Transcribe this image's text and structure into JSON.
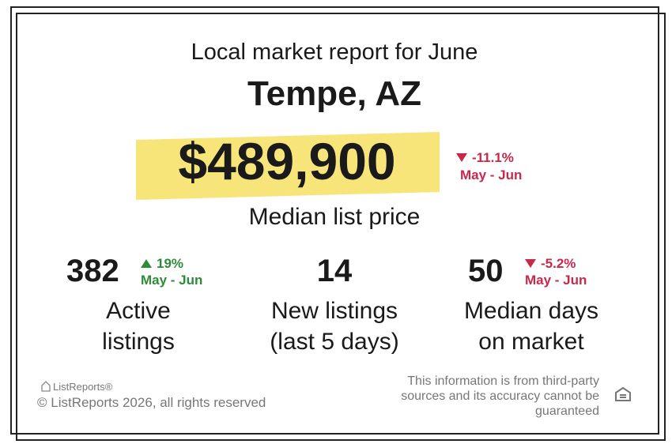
{
  "header": {
    "title": "Local market report for June",
    "location": "Tempe, AZ"
  },
  "headline": {
    "value": "$489,900",
    "change": "-11.1%",
    "period": "May - Jun",
    "label": "Median list price"
  },
  "stats": [
    {
      "value": "382",
      "change": "19%",
      "period": "May - Jun",
      "label": [
        "Active",
        "listings"
      ]
    },
    {
      "value": "14",
      "label": [
        "New listings",
        "(last 5 days)"
      ]
    },
    {
      "value": "50",
      "change": "-5.2%",
      "period": "May - Jun",
      "label": [
        "Median days",
        "on market"
      ]
    }
  ],
  "footer": {
    "logo": "ListReports®",
    "copyright": "© ListReports 2026, all rights reserved",
    "disclaimer": [
      "This information is from third-party",
      "sources and its accuracy cannot be",
      "guaranteed"
    ]
  }
}
